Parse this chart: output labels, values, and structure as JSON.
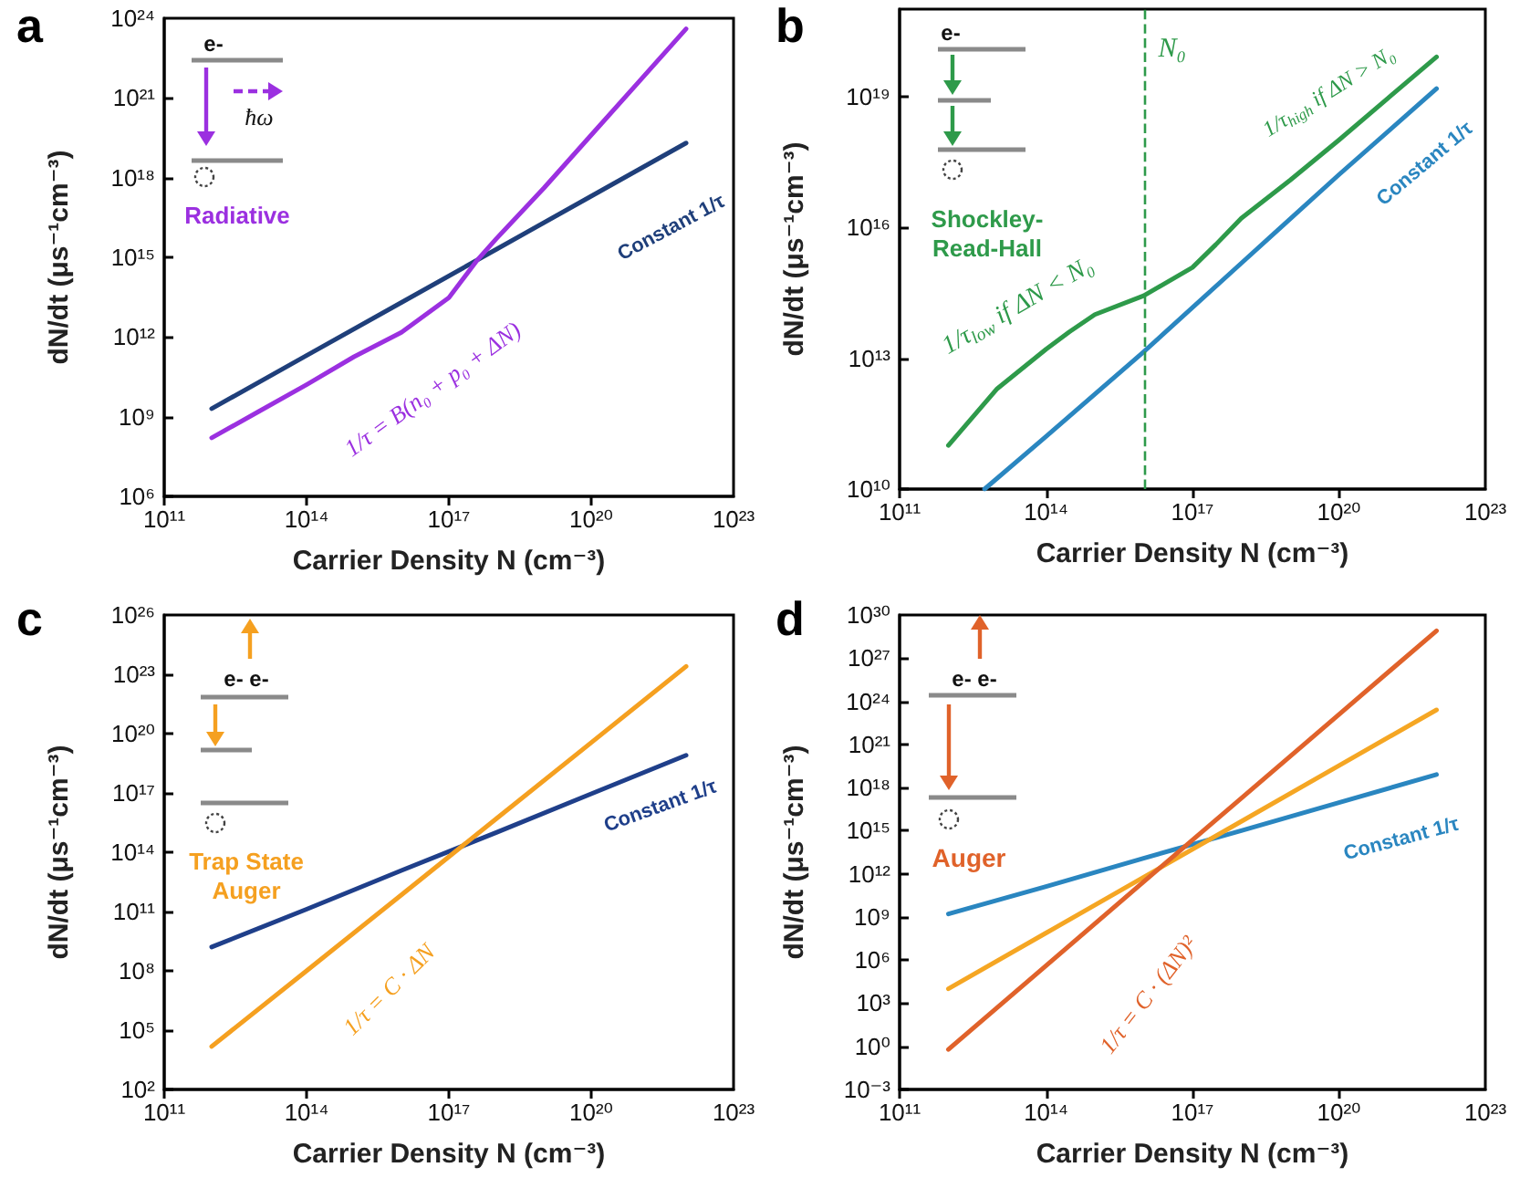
{
  "chart_data": [
    {
      "type": "line",
      "title": "a",
      "xlabel": "Carrier Density N (cm⁻³)",
      "ylabel": "dN/dt (μs⁻¹cm⁻³)",
      "log": "xy",
      "marker": "none",
      "xlim": [
        100000000000.0,
        1e+23
      ],
      "ylim": [
        1000000.0,
        1e+24
      ],
      "xticks": [
        {
          "value": 100000000000.0,
          "label": "10¹¹"
        },
        {
          "value": 100000000000000.0,
          "label": "10¹⁴"
        },
        {
          "value": 1e+17,
          "label": "10¹⁷"
        },
        {
          "value": 1e+20,
          "label": "10²⁰"
        },
        {
          "value": 1e+23,
          "label": "10²³"
        }
      ],
      "yticks": [
        {
          "value": 1000000.0,
          "label": "10⁶"
        },
        {
          "value": 1000000000.0,
          "label": "10⁹"
        },
        {
          "value": 1000000000000.0,
          "label": "10¹²"
        },
        {
          "value": 1000000000000000.0,
          "label": "10¹⁵"
        },
        {
          "value": 1e+18,
          "label": "10¹⁸"
        },
        {
          "value": 1e+21,
          "label": "10²¹"
        },
        {
          "value": 1e+24,
          "label": "10²⁴"
        }
      ],
      "series": [
        {
          "color": "#1f3f7a",
          "x": [
            1000000000000.0,
            100000000000000.0,
            1e+16,
            1e+18,
            1e+20,
            1e+22
          ],
          "values": [
            2000000000.0,
            200000000000.0,
            20000000000000.0,
            2000000000000000.0,
            2e+17,
            2e+19
          ]
        },
        {
          "color": "#9b30e0",
          "x": [
            1000000000000.0,
            10000000000000.0,
            100000000000000.0,
            1000000000000000.0,
            1e+16,
            1e+17,
            4e+17,
            1e+18,
            1e+19,
            1e+20,
            1e+21,
            1e+22
          ],
          "values": [
            160000000.0,
            1600000000.0,
            16000000000.0,
            180000000000.0,
            1500000000000.0,
            30000000000000.0,
            800000000000000.0,
            5000000000000000.0,
            4e+17,
            4e+19,
            4e+21,
            4e+23
          ]
        }
      ],
      "annotations": [
        "e-",
        "ħω",
        "Radiative",
        "Constant 1/τ",
        "1/τ = B(n₀ + p₀ + ΔN)"
      ]
    },
    {
      "type": "line",
      "title": "b",
      "xlabel": "Carrier Density N (cm⁻³)",
      "ylabel": "dN/dt (μs⁻¹cm⁻³)",
      "log": "xy",
      "marker": "none",
      "xlim": [
        100000000000.0,
        1e+23
      ],
      "ylim": [
        10000000000.0,
        1e+21
      ],
      "xticks": [
        {
          "value": 100000000000.0,
          "label": "10¹¹"
        },
        {
          "value": 100000000000000.0,
          "label": "10¹⁴"
        },
        {
          "value": 1e+17,
          "label": "10¹⁷"
        },
        {
          "value": 1e+20,
          "label": "10²⁰"
        },
        {
          "value": 1e+23,
          "label": "10²³"
        }
      ],
      "yticks": [
        {
          "value": 10000000000.0,
          "label": "10¹⁰"
        },
        {
          "value": 10000000000000.0,
          "label": "10¹³"
        },
        {
          "value": 1e+16,
          "label": "10¹⁶"
        },
        {
          "value": 1e+19,
          "label": "10¹⁹"
        }
      ],
      "series": [
        {
          "color": "#2e9a4a",
          "x": [
            1000000000000.0,
            10000000000000.0,
            100000000000000.0,
            300000000000000.0,
            1000000000000000.0,
            1e+16,
            1e+17,
            3e+17,
            1e+18,
            1e+19,
            1e+20,
            1e+21,
            1e+22
          ],
          "values": [
            100000000000.0,
            2000000000000.0,
            16000000000000.0,
            40000000000000.0,
            100000000000000.0,
            270000000000000.0,
            1200000000000000.0,
            4000000000000000.0,
            1.6e+16,
            1.2e+17,
            1e+18,
            9e+18,
            8e+19
          ]
        },
        {
          "color": "#2a86c0",
          "x": [
            5500000000000.0,
            100000000000000.0,
            1e+16,
            1e+18,
            1e+20,
            1e+22
          ],
          "values": [
            10000000000.0,
            160000000000.0,
            14000000000000.0,
            1500000000000000.0,
            1.6e+17,
            1.5e+19
          ]
        }
      ],
      "ref_lines": [
        {
          "axis": "x",
          "value": 1e+16,
          "label": "N₀",
          "color": "#2e9a4a",
          "line_style": "dashed"
        }
      ],
      "annotations": [
        "e-",
        "Shockley-\nRead-Hall",
        "1/τ$_{low}$ if ΔN < N₀",
        "1/τ$_{high}$ if ΔN > N₀",
        "Constant 1/τ"
      ]
    },
    {
      "type": "line",
      "title": "c",
      "xlabel": "Carrier Density N (cm⁻³)",
      "ylabel": "dN/dt (μs⁻¹cm⁻³)",
      "log": "xy",
      "marker": "none",
      "xlim": [
        100000000000.0,
        1e+23
      ],
      "ylim": [
        100.0,
        1e+26
      ],
      "xticks": [
        {
          "value": 100000000000.0,
          "label": "10¹¹"
        },
        {
          "value": 100000000000000.0,
          "label": "10¹⁴"
        },
        {
          "value": 1e+17,
          "label": "10¹⁷"
        },
        {
          "value": 1e+20,
          "label": "10²⁰"
        },
        {
          "value": 1e+23,
          "label": "10²³"
        }
      ],
      "yticks": [
        {
          "value": 100.0,
          "label": "10²"
        },
        {
          "value": 100000.0,
          "label": "10⁵"
        },
        {
          "value": 100000000.0,
          "label": "10⁸"
        },
        {
          "value": 100000000000.0,
          "label": "10¹¹"
        },
        {
          "value": 100000000000000.0,
          "label": "10¹⁴"
        },
        {
          "value": 1e+17,
          "label": "10¹⁷"
        },
        {
          "value": 1e+20,
          "label": "10²⁰"
        },
        {
          "value": 1e+23,
          "label": "10²³"
        },
        {
          "value": 1e+26,
          "label": "10²⁶"
        }
      ],
      "series": [
        {
          "color": "#1f3f8a",
          "x": [
            1000000000000.0,
            100000000000000.0,
            1e+16,
            1e+18,
            1e+20,
            1e+22
          ],
          "values": [
            1600000000.0,
            130000000000.0,
            12000000000000.0,
            1000000000000000.0,
            9e+16,
            8e+18
          ]
        },
        {
          "color": "#f5a020",
          "x": [
            1000000000000.0,
            100000000000000.0,
            1e+16,
            1e+18,
            1e+20,
            1e+22
          ],
          "values": [
            15000.0,
            100000000.0,
            700000000000.0,
            5000000000000000.0,
            3.5e+19,
            2.5e+23
          ]
        }
      ],
      "annotations": [
        "e- e-",
        "Trap State\nAuger",
        "1/τ = C · ΔN",
        "Constant 1/τ"
      ]
    },
    {
      "type": "line",
      "title": "d",
      "xlabel": "Carrier Density N (cm⁻³)",
      "ylabel": "dN/dt (μs⁻¹cm⁻³)",
      "log": "xy",
      "marker": "none",
      "xlim": [
        100000000000.0,
        1e+23
      ],
      "ylim": [
        0.001,
        1e+30
      ],
      "xticks": [
        {
          "value": 100000000000.0,
          "label": "10¹¹"
        },
        {
          "value": 100000000000000.0,
          "label": "10¹⁴"
        },
        {
          "value": 1e+17,
          "label": "10¹⁷"
        },
        {
          "value": 1e+20,
          "label": "10²⁰"
        },
        {
          "value": 1e+23,
          "label": "10²³"
        }
      ],
      "yticks": [
        {
          "value": 0.001,
          "label": "10⁻³"
        },
        {
          "value": 1,
          "label": "10⁰"
        },
        {
          "value": 1000.0,
          "label": "10³"
        },
        {
          "value": 1000000.0,
          "label": "10⁶"
        },
        {
          "value": 1000000000.0,
          "label": "10⁹"
        },
        {
          "value": 1000000000000.0,
          "label": "10¹²"
        },
        {
          "value": 1000000000000000.0,
          "label": "10¹⁵"
        },
        {
          "value": 1e+18,
          "label": "10¹⁸"
        },
        {
          "value": 1e+21,
          "label": "10²¹"
        },
        {
          "value": 1e+24,
          "label": "10²⁴"
        },
        {
          "value": 1e+27,
          "label": "10²⁷"
        },
        {
          "value": 1e+30,
          "label": "10³⁰"
        }
      ],
      "series": [
        {
          "color": "#2a86c0",
          "x": [
            1000000000000.0,
            100000000000000.0,
            1e+16,
            1e+18,
            1e+20,
            1e+22
          ],
          "values": [
            1600000000.0,
            130000000000.0,
            12000000000000.0,
            1000000000000000.0,
            9e+16,
            8e+18
          ]
        },
        {
          "color": "#f5a623",
          "x": [
            1000000000000.0,
            100000000000000.0,
            1e+16,
            1e+18,
            1e+20,
            1e+22
          ],
          "values": [
            10000.0,
            76000000.0,
            580000000000.0,
            4400000000000000.0,
            3.3e+19,
            2.5e+23
          ]
        },
        {
          "color": "#e0622a",
          "x": [
            1000000000000.0,
            100000000000000.0,
            1e+16,
            1e+18,
            1e+20,
            1e+22
          ],
          "values": [
            0.6,
            400000.0,
            280000000000.0,
            1.8e+17,
            1.2e+23,
            8e+28
          ]
        }
      ],
      "annotations": [
        "e- e-",
        "Auger",
        "1/τ = C · (ΔN)²",
        "Constant 1/τ"
      ]
    }
  ]
}
